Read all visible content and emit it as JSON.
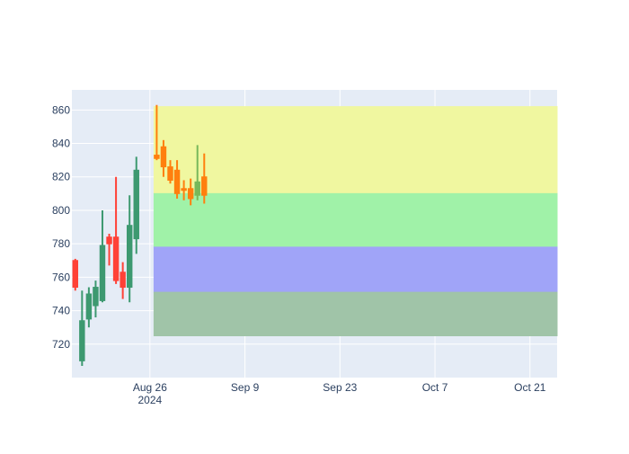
{
  "chart_data": {
    "type": "candlestick",
    "title": "",
    "xlabel": "",
    "ylabel": "",
    "ylim": [
      700,
      872
    ],
    "xlim": [
      "2024-08-15",
      "2024-10-25"
    ],
    "x_ticks": [
      {
        "date": "2024-08-26",
        "label": "Aug 26",
        "sublabel": "2024"
      },
      {
        "date": "2024-09-09",
        "label": "Sep 9"
      },
      {
        "date": "2024-09-23",
        "label": "Sep 23"
      },
      {
        "date": "2024-10-07",
        "label": "Oct 7"
      },
      {
        "date": "2024-10-21",
        "label": "Oct 21"
      }
    ],
    "y_ticks": [
      720,
      740,
      760,
      780,
      800,
      820,
      840,
      860
    ],
    "grid": true,
    "colors": {
      "background": "#e5ecf6",
      "grid": "#ffffff",
      "axis_text": "#2a3f5f",
      "historical_increasing": "#3d9970",
      "historical_decreasing": "#ff4136",
      "forecast_increasing": "#77b85a",
      "forecast_decreasing": "#ff7f0e"
    },
    "bands": [
      {
        "y0": 810,
        "y1": 862,
        "start": "2024-08-27",
        "end": "2024-10-25",
        "color": "#f0f7a0"
      },
      {
        "y0": 778,
        "y1": 810,
        "start": "2024-08-27",
        "end": "2024-10-25",
        "color": "#a0f2a8"
      },
      {
        "y0": 751,
        "y1": 778,
        "start": "2024-08-27",
        "end": "2024-10-25",
        "color": "#a0a4f8"
      },
      {
        "y0": 725,
        "y1": 751,
        "start": "2024-08-27",
        "end": "2024-10-25",
        "color": "#a0c4a8"
      }
    ],
    "historical": [
      {
        "date": "2024-08-15",
        "open": 770,
        "high": 771,
        "low": 752,
        "close": 754
      },
      {
        "date": "2024-08-16",
        "open": 710,
        "high": 752,
        "low": 707,
        "close": 734
      },
      {
        "date": "2024-08-17",
        "open": 735,
        "high": 754,
        "low": 730,
        "close": 750
      },
      {
        "date": "2024-08-18",
        "open": 743,
        "high": 758,
        "low": 736,
        "close": 754
      },
      {
        "date": "2024-08-19",
        "open": 746,
        "high": 800,
        "low": 745,
        "close": 779
      },
      {
        "date": "2024-08-20",
        "open": 784,
        "high": 786,
        "low": 767,
        "close": 780
      },
      {
        "date": "2024-08-21",
        "open": 784,
        "high": 820,
        "low": 756,
        "close": 758
      },
      {
        "date": "2024-08-22",
        "open": 763,
        "high": 769,
        "low": 747,
        "close": 754
      },
      {
        "date": "2024-08-23",
        "open": 754,
        "high": 809,
        "low": 745,
        "close": 791
      },
      {
        "date": "2024-08-24",
        "open": 783,
        "high": 832,
        "low": 774,
        "close": 824
      }
    ],
    "forecast": [
      {
        "date": "2024-08-27",
        "open": 833,
        "high": 863,
        "low": 830,
        "close": 831
      },
      {
        "date": "2024-08-28",
        "open": 838,
        "high": 842,
        "low": 820,
        "close": 826
      },
      {
        "date": "2024-08-29",
        "open": 826,
        "high": 830,
        "low": 816,
        "close": 818
      },
      {
        "date": "2024-08-30",
        "open": 824,
        "high": 830,
        "low": 807,
        "close": 810
      },
      {
        "date": "2024-08-31",
        "open": 813,
        "high": 818,
        "low": 806,
        "close": 812
      },
      {
        "date": "2024-09-01",
        "open": 813,
        "high": 819,
        "low": 803,
        "close": 807
      },
      {
        "date": "2024-09-02",
        "open": 809,
        "high": 839,
        "low": 806,
        "close": 817
      },
      {
        "date": "2024-09-03",
        "open": 820,
        "high": 834,
        "low": 804,
        "close": 809
      }
    ]
  }
}
